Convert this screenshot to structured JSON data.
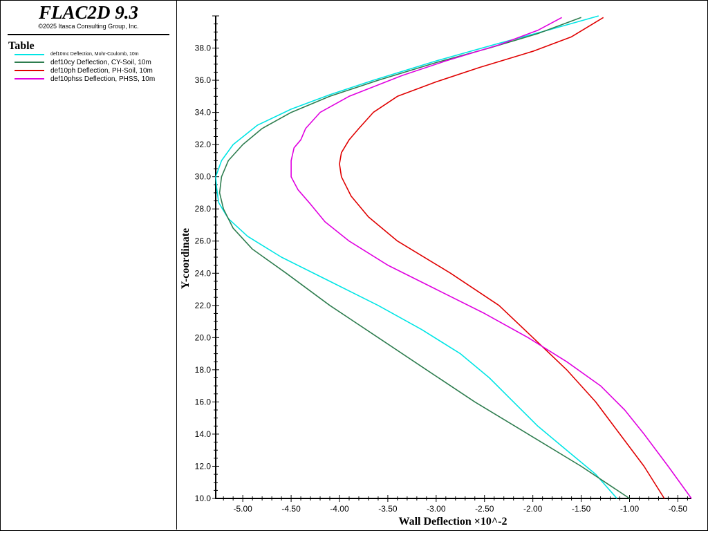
{
  "app": {
    "title": "FLAC2D 9.3",
    "copyright": "©2025 Itasca Consulting Group, Inc."
  },
  "legend": {
    "title": "Table"
  },
  "chart_data": {
    "type": "line",
    "title": "",
    "xlabel": "Wall Deflection ×10^-2",
    "ylabel": "Y-coordinate",
    "xlim": [
      -5.28,
      -0.36
    ],
    "ylim": [
      10.0,
      40.0
    ],
    "x_ticks": [
      "-5.00",
      "-4.50",
      "-4.00",
      "-3.50",
      "-3.00",
      "-2.50",
      "-2.00",
      "-1.50",
      "-1.00",
      "-0.50"
    ],
    "y_ticks": [
      "10.0",
      "12.0",
      "14.0",
      "16.0",
      "18.0",
      "20.0",
      "22.0",
      "24.0",
      "26.0",
      "28.0",
      "30.0",
      "32.0",
      "34.0",
      "36.0",
      "38.0"
    ],
    "grid": false,
    "legend_position": "left-panel",
    "series": [
      {
        "name": "def10mc Deflection, Mohr-Coulomb, 10m",
        "color": "#00e5e5",
        "points": [
          [
            -1.13,
            10.0
          ],
          [
            -1.35,
            11.5
          ],
          [
            -1.65,
            13.0
          ],
          [
            -1.95,
            14.5
          ],
          [
            -2.2,
            16.0
          ],
          [
            -2.45,
            17.5
          ],
          [
            -2.75,
            19.0
          ],
          [
            -3.15,
            20.5
          ],
          [
            -3.6,
            22.0
          ],
          [
            -4.1,
            23.5
          ],
          [
            -4.6,
            25.0
          ],
          [
            -4.95,
            26.3
          ],
          [
            -5.15,
            27.4
          ],
          [
            -5.25,
            28.4
          ],
          [
            -5.27,
            29.3
          ],
          [
            -5.28,
            30.0
          ],
          [
            -5.22,
            31.0
          ],
          [
            -5.1,
            32.0
          ],
          [
            -4.85,
            33.2
          ],
          [
            -4.5,
            34.2
          ],
          [
            -4.1,
            35.1
          ],
          [
            -3.65,
            36.0
          ],
          [
            -3.0,
            37.2
          ],
          [
            -2.35,
            38.3
          ],
          [
            -1.85,
            39.1
          ],
          [
            -1.32,
            40.0
          ]
        ]
      },
      {
        "name": "def10cy Deflection, CY-Soil, 10m",
        "color": "#2e7d4f",
        "points": [
          [
            -1.0,
            10.0
          ],
          [
            -1.5,
            12.0
          ],
          [
            -2.05,
            14.0
          ],
          [
            -2.6,
            16.0
          ],
          [
            -3.1,
            18.0
          ],
          [
            -3.6,
            20.0
          ],
          [
            -4.1,
            22.0
          ],
          [
            -4.55,
            24.0
          ],
          [
            -4.9,
            25.5
          ],
          [
            -5.1,
            26.8
          ],
          [
            -5.2,
            28.0
          ],
          [
            -5.24,
            29.0
          ],
          [
            -5.22,
            30.0
          ],
          [
            -5.15,
            31.0
          ],
          [
            -5.0,
            32.0
          ],
          [
            -4.8,
            33.0
          ],
          [
            -4.5,
            34.0
          ],
          [
            -4.1,
            35.0
          ],
          [
            -3.6,
            36.0
          ],
          [
            -3.0,
            37.1
          ],
          [
            -2.45,
            38.0
          ],
          [
            -1.95,
            38.9
          ],
          [
            -1.5,
            39.9
          ]
        ]
      },
      {
        "name": "def10ph Deflection, PH-Soil, 10m",
        "color": "#e00000",
        "points": [
          [
            -0.64,
            10.0
          ],
          [
            -0.85,
            12.0
          ],
          [
            -1.1,
            14.0
          ],
          [
            -1.35,
            16.0
          ],
          [
            -1.65,
            18.0
          ],
          [
            -2.0,
            20.0
          ],
          [
            -2.35,
            22.0
          ],
          [
            -2.85,
            24.0
          ],
          [
            -3.4,
            26.0
          ],
          [
            -3.7,
            27.5
          ],
          [
            -3.88,
            28.8
          ],
          [
            -3.98,
            30.0
          ],
          [
            -4.0,
            30.8
          ],
          [
            -3.98,
            31.5
          ],
          [
            -3.9,
            32.3
          ],
          [
            -3.8,
            33.0
          ],
          [
            -3.65,
            34.0
          ],
          [
            -3.4,
            35.0
          ],
          [
            -3.0,
            35.9
          ],
          [
            -2.55,
            36.8
          ],
          [
            -2.0,
            37.8
          ],
          [
            -1.6,
            38.7
          ],
          [
            -1.27,
            39.9
          ]
        ]
      },
      {
        "name": "def10phss Deflection, PHSS, 10m",
        "color": "#e000e0",
        "points": [
          [
            -0.36,
            10.0
          ],
          [
            -0.6,
            12.0
          ],
          [
            -0.85,
            14.0
          ],
          [
            -1.05,
            15.5
          ],
          [
            -1.3,
            17.0
          ],
          [
            -1.65,
            18.5
          ],
          [
            -2.05,
            20.0
          ],
          [
            -2.5,
            21.5
          ],
          [
            -3.0,
            23.0
          ],
          [
            -3.5,
            24.5
          ],
          [
            -3.9,
            26.0
          ],
          [
            -4.15,
            27.2
          ],
          [
            -4.3,
            28.3
          ],
          [
            -4.43,
            29.2
          ],
          [
            -4.5,
            30.0
          ],
          [
            -4.5,
            31.0
          ],
          [
            -4.47,
            31.8
          ],
          [
            -4.4,
            32.3
          ],
          [
            -4.35,
            33.0
          ],
          [
            -4.2,
            34.0
          ],
          [
            -3.9,
            35.0
          ],
          [
            -3.35,
            36.3
          ],
          [
            -2.9,
            37.2
          ],
          [
            -2.35,
            38.2
          ],
          [
            -1.95,
            39.1
          ],
          [
            -1.7,
            39.9
          ]
        ]
      }
    ]
  }
}
